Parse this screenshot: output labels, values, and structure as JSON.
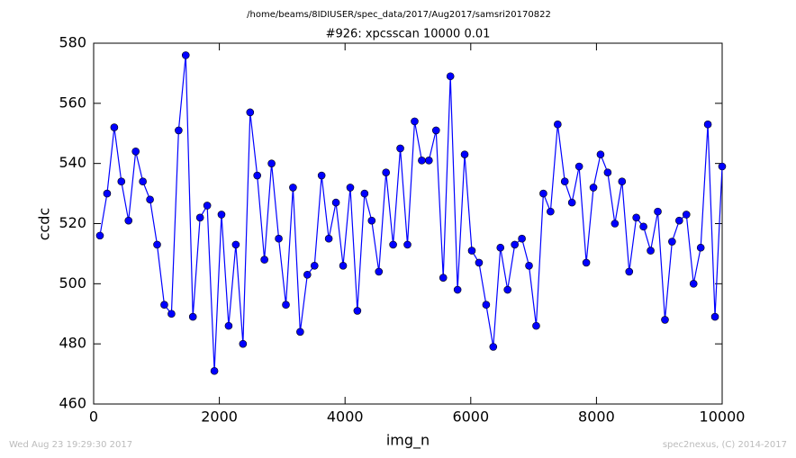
{
  "chart_data": {
    "type": "line",
    "suptitle": "/home/beams/8IDIUSER/spec_data/2017/Aug2017/samsri20170822",
    "title": "#926: xpcsscan 10000 0.01",
    "xlabel": "img_n",
    "ylabel": "ccdc",
    "timestamp": "Wed Aug 23 19:29:30 2017",
    "credit": "spec2nexus, (C) 2014-2017",
    "xlim": [
      0,
      10000
    ],
    "ylim": [
      460,
      580
    ],
    "xticks": [
      0,
      2000,
      4000,
      6000,
      8000,
      10000
    ],
    "yticks": [
      460,
      480,
      500,
      520,
      540,
      560,
      580
    ],
    "x": [
      100,
      214,
      328,
      441,
      555,
      669,
      783,
      897,
      1010,
      1124,
      1238,
      1352,
      1465,
      1579,
      1693,
      1807,
      1921,
      2034,
      2148,
      2262,
      2376,
      2490,
      2603,
      2717,
      2831,
      2945,
      3059,
      3172,
      3286,
      3400,
      3514,
      3627,
      3741,
      3855,
      3969,
      4083,
      4196,
      4310,
      4424,
      4538,
      4652,
      4765,
      4879,
      4993,
      5107,
      5221,
      5334,
      5448,
      5562,
      5676,
      5790,
      5903,
      6017,
      6131,
      6245,
      6358,
      6472,
      6586,
      6700,
      6814,
      6927,
      7041,
      7155,
      7269,
      7383,
      7496,
      7610,
      7724,
      7838,
      7952,
      8065,
      8179,
      8293,
      8407,
      8521,
      8634,
      8748,
      8862,
      8976,
      9090,
      9203,
      9317,
      9431,
      9545,
      9659,
      9772,
      9886,
      10000
    ],
    "series": [
      {
        "color": "#0000ff",
        "values": [
          516,
          530,
          552,
          534,
          521,
          544,
          534,
          528,
          513,
          493,
          490,
          551,
          576,
          489,
          522,
          526,
          471,
          523,
          486,
          513,
          480,
          557,
          536,
          508,
          540,
          515,
          493,
          532,
          484,
          503,
          506,
          536,
          515,
          527,
          506,
          532,
          491,
          530,
          521,
          504,
          537,
          513,
          545,
          513,
          554,
          541,
          541,
          551,
          502,
          569,
          498,
          543,
          511,
          507,
          493,
          479,
          512,
          498,
          513,
          515,
          506,
          486,
          530,
          524,
          553,
          534,
          527,
          539,
          507,
          532,
          543,
          537,
          520,
          534,
          504,
          522,
          519,
          511,
          524,
          488,
          514,
          521,
          523,
          500,
          512,
          553,
          489,
          539
        ]
      }
    ]
  }
}
